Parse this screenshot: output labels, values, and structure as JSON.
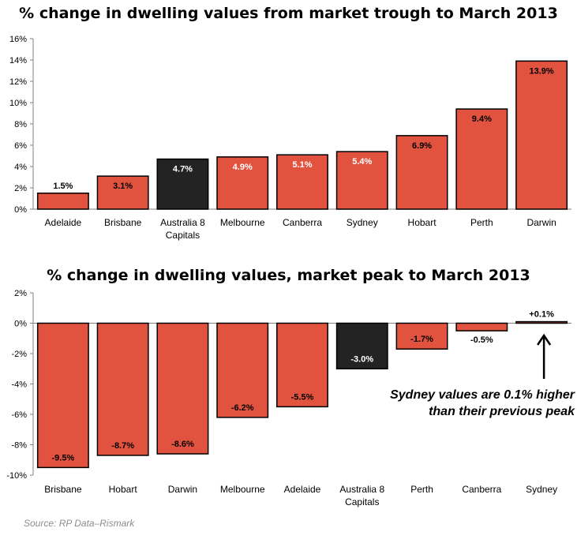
{
  "source": "Source: RP Data–Rismark",
  "annotation": {
    "line1": "Sydney values are 0.1% higher",
    "line2": "than their previous peak"
  },
  "colors": {
    "bar": "#e2533f",
    "highlight": "#232323",
    "stroke": "#000000"
  },
  "chart_data": [
    {
      "type": "bar",
      "title": "% change in dwelling values from market trough to March 2013",
      "categories": [
        [
          "Adelaide"
        ],
        [
          "Brisbane"
        ],
        [
          "Australia 8",
          "Capitals"
        ],
        [
          "Melbourne"
        ],
        [
          "Canberra"
        ],
        [
          "Sydney"
        ],
        [
          "Hobart"
        ],
        [
          "Perth"
        ],
        [
          "Darwin"
        ]
      ],
      "values": [
        1.5,
        3.1,
        4.7,
        4.9,
        5.1,
        5.4,
        6.9,
        9.4,
        13.9
      ],
      "data_labels": [
        "1.5%",
        "3.1%",
        "4.7%",
        "4.9%",
        "5.1%",
        "5.4%",
        "6.9%",
        "9.4%",
        "13.9%"
      ],
      "highlight_index": 2,
      "ylim": [
        0,
        16
      ],
      "yticks": [
        0,
        2,
        4,
        6,
        8,
        10,
        12,
        14,
        16
      ],
      "ytick_labels": [
        "0%",
        "2%",
        "4%",
        "6%",
        "8%",
        "10%",
        "12%",
        "14%",
        "16%"
      ],
      "grid": false,
      "legend": "none"
    },
    {
      "type": "bar",
      "title": "% change in dwelling values, market peak to March 2013",
      "categories": [
        [
          "Brisbane"
        ],
        [
          "Hobart"
        ],
        [
          "Darwin"
        ],
        [
          "Melbourne"
        ],
        [
          "Adelaide"
        ],
        [
          "Australia 8",
          "Capitals"
        ],
        [
          "Perth"
        ],
        [
          "Canberra"
        ],
        [
          "Sydney"
        ]
      ],
      "values": [
        -9.5,
        -8.7,
        -8.6,
        -6.2,
        -5.5,
        -3.0,
        -1.7,
        -0.5,
        0.1
      ],
      "data_labels": [
        "-9.5%",
        "-8.7%",
        "-8.6%",
        "-6.2%",
        "-5.5%",
        "-3.0%",
        "-1.7%",
        "-0.5%",
        "+0.1%"
      ],
      "highlight_index": 5,
      "ylim": [
        -10,
        2
      ],
      "yticks": [
        2,
        0,
        -2,
        -4,
        -6,
        -8,
        -10
      ],
      "ytick_labels": [
        "2%",
        "0%",
        "-2%",
        "-4%",
        "-6%",
        "-8%",
        "-10%"
      ],
      "grid": false,
      "legend": "none"
    }
  ]
}
